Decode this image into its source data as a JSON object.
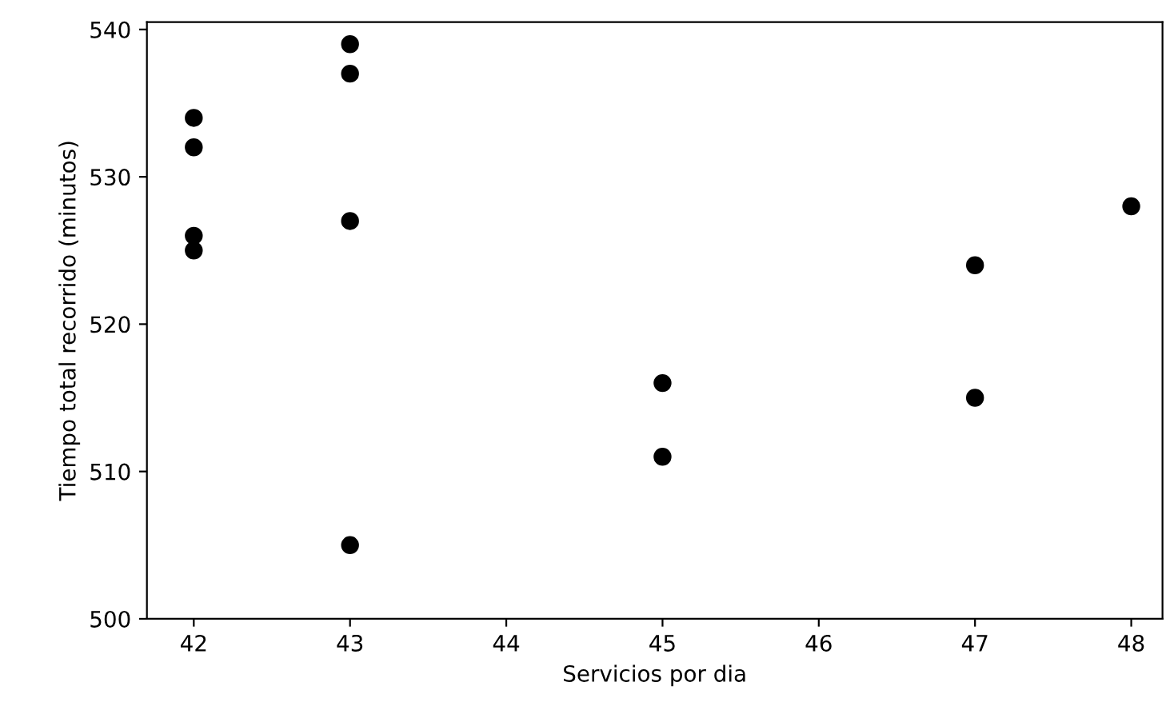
{
  "chart_data": {
    "type": "scatter",
    "xlabel": "Servicios por dia",
    "ylabel": "Tiempo total recorrido (minutos)",
    "series": [
      {
        "color": "#000000",
        "x": [
          42,
          42,
          42,
          42,
          43,
          43,
          43,
          43,
          45,
          45,
          47,
          47,
          48
        ],
        "values": [
          534,
          532,
          526,
          525,
          539,
          537,
          527,
          505,
          516,
          511,
          524,
          515,
          528
        ]
      }
    ],
    "xlim": [
      41.7,
      48.2
    ],
    "xticks": [
      42,
      43,
      44,
      45,
      46,
      47,
      48
    ],
    "ylim": [
      500,
      540.5
    ],
    "yticks": [
      500,
      510,
      520,
      530,
      540
    ],
    "marker": "circle",
    "grid": false,
    "legend": false
  }
}
